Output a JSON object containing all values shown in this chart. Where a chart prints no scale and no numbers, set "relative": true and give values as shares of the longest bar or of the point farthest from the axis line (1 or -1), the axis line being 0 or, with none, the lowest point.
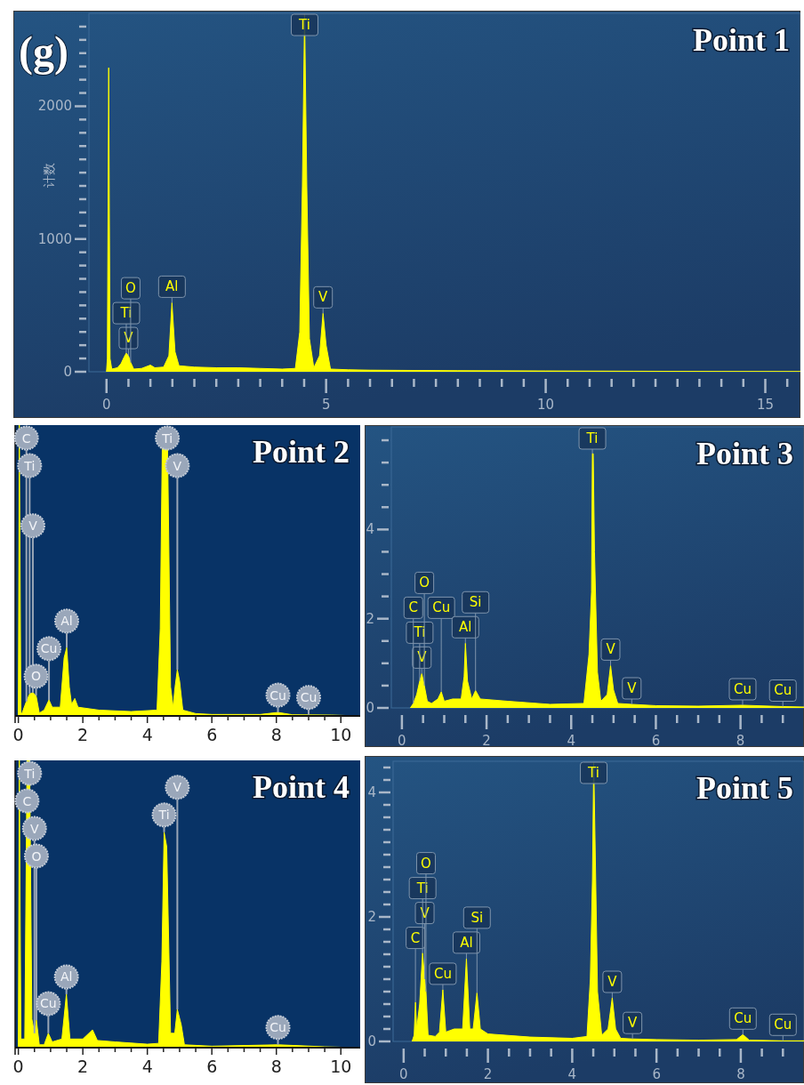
{
  "chart_data": [
    {
      "type": "area",
      "title": "Point 1",
      "ylabel": "计数",
      "annotations": [
        "(g)",
        {
          "text": "Ti",
          "x": 4.51,
          "y": 2690
        },
        {
          "text": "V",
          "x": 0.5,
          "y": 120
        },
        {
          "text": "Ti",
          "x": 0.45,
          "y": 140
        },
        {
          "text": "O",
          "x": 0.55,
          "y": 70
        },
        {
          "text": "Al",
          "x": 1.49,
          "y": 520
        },
        {
          "text": "V",
          "x": 4.93,
          "y": 440
        }
      ],
      "x": [
        0,
        0.02,
        0.05,
        0.08,
        0.12,
        0.25,
        0.33,
        0.4,
        0.45,
        0.5,
        0.55,
        0.62,
        0.8,
        1.0,
        1.1,
        1.3,
        1.42,
        1.49,
        1.56,
        1.65,
        2.0,
        2.5,
        3.0,
        3.5,
        4.0,
        4.3,
        4.4,
        4.46,
        4.51,
        4.56,
        4.62,
        4.72,
        4.85,
        4.93,
        5.0,
        5.1,
        5.5,
        6.0,
        8.0,
        10.0,
        12.0,
        14.0,
        15.8
      ],
      "series": [
        {
          "color": "#ffff00",
          "values": [
            0,
            100,
            2290,
            100,
            20,
            30,
            60,
            110,
            140,
            120,
            70,
            20,
            25,
            50,
            30,
            35,
            120,
            520,
            150,
            45,
            35,
            30,
            30,
            25,
            20,
            25,
            300,
            1400,
            2690,
            1400,
            250,
            30,
            120,
            440,
            200,
            20,
            15,
            12,
            8,
            6,
            4,
            2,
            1
          ]
        }
      ],
      "xlim": [
        -0.4,
        15.8
      ],
      "ylim": [
        0,
        2700
      ],
      "xticks": [
        0,
        {
          "value": 0.5,
          "label": null
        },
        {
          "value": 1,
          "label": null
        },
        {
          "value": 1.5,
          "label": null
        },
        {
          "value": 2,
          "label": null
        },
        {
          "value": 2.5,
          "label": null
        },
        {
          "value": 3,
          "label": null
        },
        {
          "value": 3.5,
          "label": null
        },
        {
          "value": 4,
          "label": null
        },
        {
          "value": 4.5,
          "label": null
        },
        5,
        {
          "value": 5.5,
          "label": null
        },
        {
          "value": 6,
          "label": null
        },
        {
          "value": 6.5,
          "label": null
        },
        {
          "value": 7,
          "label": null
        },
        {
          "value": 7.5,
          "label": null
        },
        {
          "value": 8,
          "label": null
        },
        {
          "value": 8.5,
          "label": null
        },
        {
          "value": 9,
          "label": null
        },
        {
          "value": 9.5,
          "label": null
        },
        10,
        {
          "value": 10.5,
          "label": null
        },
        {
          "value": 11,
          "label": null
        },
        {
          "value": 11.5,
          "label": null
        },
        {
          "value": 12,
          "label": null
        },
        {
          "value": 12.5,
          "label": null
        },
        {
          "value": 13,
          "label": null
        },
        {
          "value": 13.5,
          "label": null
        },
        {
          "value": 14,
          "label": null
        },
        {
          "value": 14.5,
          "label": null
        },
        15,
        {
          "value": 15.5,
          "label": null
        }
      ],
      "yticks": [
        0,
        {
          "value": 100,
          "label": null
        },
        {
          "value": 200,
          "label": null
        },
        {
          "value": 300,
          "label": null
        },
        {
          "value": 400,
          "label": null
        },
        {
          "value": 500,
          "label": null
        },
        {
          "value": 600,
          "label": null
        },
        {
          "value": 700,
          "label": null
        },
        {
          "value": 800,
          "label": null
        },
        {
          "value": 900,
          "label": null
        },
        1000,
        {
          "value": 1100,
          "label": null
        },
        {
          "value": 1200,
          "label": null
        },
        {
          "value": 1300,
          "label": null
        },
        {
          "value": 1400,
          "label": null
        },
        {
          "value": 1500,
          "label": null
        },
        {
          "value": 1600,
          "label": null
        },
        {
          "value": 1700,
          "label": null
        },
        {
          "value": 1800,
          "label": null
        },
        {
          "value": 1900,
          "label": null
        },
        2000,
        {
          "value": 2100,
          "label": null
        },
        {
          "value": 2200,
          "label": null
        },
        {
          "value": 2300,
          "label": null
        },
        {
          "value": 2400,
          "label": null
        },
        {
          "value": 2500,
          "label": null
        },
        {
          "value": 2600,
          "label": null
        }
      ]
    },
    {
      "type": "area",
      "title": "Point 2",
      "relative": true,
      "annotations": [
        {
          "text": "C",
          "x": 0.25,
          "y": 0.05
        },
        {
          "text": "Ti",
          "x": 0.35,
          "y": 0.076
        },
        {
          "text": "V",
          "x": 0.45,
          "y": 0.08
        },
        {
          "text": "O",
          "x": 0.55,
          "y": 0.07
        },
        {
          "text": "Cu",
          "x": 0.95,
          "y": 0.055
        },
        {
          "text": "Al",
          "x": 1.5,
          "y": 0.235
        },
        {
          "text": "Ti",
          "x": 4.62,
          "y": 0.99
        },
        {
          "text": "V",
          "x": 4.93,
          "y": 0.159
        },
        {
          "text": "Cu",
          "x": 8.05,
          "y": 0.012
        },
        {
          "text": "Cu",
          "x": 9.0,
          "y": 0.004
        }
      ],
      "x": [
        0,
        0.03,
        0.08,
        0.15,
        0.25,
        0.35,
        0.45,
        0.55,
        0.65,
        0.8,
        0.95,
        1.05,
        1.3,
        1.42,
        1.5,
        1.58,
        1.65,
        1.75,
        1.85,
        2.5,
        3.5,
        4.3,
        4.4,
        4.47,
        4.62,
        4.72,
        4.8,
        4.86,
        4.93,
        5.0,
        5.1,
        5.5,
        6.0,
        7.5,
        8.05,
        8.5,
        9.7,
        10.6
      ],
      "series": [
        {
          "color": "#ffff00",
          "values": [
            0,
            1,
            0,
            0.02,
            0.05,
            0.076,
            0.08,
            0.07,
            0.01,
            0.02,
            0.055,
            0.03,
            0.03,
            0.2,
            0.235,
            0.1,
            0.04,
            0.06,
            0.03,
            0.02,
            0.015,
            0.02,
            0.3,
            0.99,
            0.99,
            0.1,
            0.03,
            0.1,
            0.159,
            0.12,
            0.02,
            0.008,
            0.005,
            0.005,
            0.012,
            0.004,
            0.003,
            0
          ]
        }
      ],
      "xlim": [
        -0.1,
        10.6
      ],
      "xticks": [
        0,
        {
          "value": 0.5,
          "label": null
        },
        {
          "value": 1,
          "label": null
        },
        {
          "value": 1.5,
          "label": null
        },
        2,
        {
          "value": 2.5,
          "label": null
        },
        {
          "value": 3,
          "label": null
        },
        {
          "value": 3.5,
          "label": null
        },
        4,
        {
          "value": 4.5,
          "label": null
        },
        {
          "value": 5,
          "label": null
        },
        {
          "value": 5.5,
          "label": null
        },
        6,
        {
          "value": 6.5,
          "label": null
        },
        {
          "value": 7,
          "label": null
        },
        {
          "value": 7.5,
          "label": null
        },
        8,
        {
          "value": 8.5,
          "label": null
        },
        {
          "value": 9,
          "label": null
        },
        {
          "value": 9.5,
          "label": null
        },
        10
      ]
    },
    {
      "type": "area",
      "title": "Point 3",
      "annotations": [
        {
          "text": "Ti",
          "x": 4.5,
          "y": 5.7
        },
        {
          "text": "V",
          "x": 0.47,
          "y": 0.77
        },
        {
          "text": "Ti",
          "x": 0.42,
          "y": 0.6
        },
        {
          "text": "C",
          "x": 0.27,
          "y": 0.1
        },
        {
          "text": "O",
          "x": 0.53,
          "y": 0.5
        },
        {
          "text": "Cu",
          "x": 0.93,
          "y": 0.36
        },
        {
          "text": "Al",
          "x": 1.5,
          "y": 1.45
        },
        {
          "text": "Si",
          "x": 1.74,
          "y": 0.39
        },
        {
          "text": "V",
          "x": 4.93,
          "y": 0.95
        },
        {
          "text": "V",
          "x": 5.43,
          "y": 0.08
        },
        {
          "text": "Cu",
          "x": 8.05,
          "y": 0.06
        },
        {
          "text": "Cu",
          "x": 9.0,
          "y": 0.03
        }
      ],
      "x": [
        0.2,
        0.27,
        0.35,
        0.42,
        0.47,
        0.53,
        0.6,
        0.7,
        0.85,
        0.93,
        1.0,
        1.2,
        1.4,
        1.47,
        1.5,
        1.55,
        1.65,
        1.74,
        1.85,
        2.5,
        3.5,
        4.3,
        4.42,
        4.48,
        4.5,
        4.52,
        4.55,
        4.62,
        4.7,
        4.85,
        4.93,
        5.0,
        5.1,
        5.43,
        6.0,
        7.0,
        8.05,
        9.0,
        9.5
      ],
      "series": [
        {
          "color": "#ffff00",
          "values": [
            0,
            0.1,
            0.3,
            0.6,
            0.77,
            0.5,
            0.15,
            0.1,
            0.2,
            0.36,
            0.15,
            0.2,
            0.2,
            0.7,
            1.45,
            0.6,
            0.2,
            0.39,
            0.2,
            0.15,
            0.08,
            0.1,
            1.2,
            2.6,
            5.7,
            5.7,
            3.5,
            0.8,
            0.15,
            0.3,
            0.95,
            0.4,
            0.1,
            0.08,
            0.05,
            0.04,
            0.06,
            0.03,
            0.02
          ]
        }
      ],
      "xlim": [
        -0.25,
        9.5
      ],
      "ylim": [
        0,
        6.3
      ],
      "xticks": [
        0,
        {
          "value": 0.5,
          "label": null
        },
        {
          "value": 1,
          "label": null
        },
        {
          "value": 1.5,
          "label": null
        },
        2,
        {
          "value": 2.5,
          "label": null
        },
        {
          "value": 3,
          "label": null
        },
        {
          "value": 3.5,
          "label": null
        },
        4,
        {
          "value": 4.5,
          "label": null
        },
        {
          "value": 5,
          "label": null
        },
        {
          "value": 5.5,
          "label": null
        },
        6,
        {
          "value": 6.5,
          "label": null
        },
        {
          "value": 7,
          "label": null
        },
        {
          "value": 7.5,
          "label": null
        },
        8,
        {
          "value": 8.5,
          "label": null
        },
        {
          "value": 9,
          "label": null
        }
      ],
      "yticks": [
        0,
        {
          "value": 0.5,
          "label": null
        },
        {
          "value": 1,
          "label": null
        },
        {
          "value": 1.5,
          "label": null
        },
        2,
        {
          "value": 2.5,
          "label": null
        },
        {
          "value": 3,
          "label": null
        },
        {
          "value": 3.5,
          "label": null
        },
        4,
        {
          "value": 4.5,
          "label": null
        },
        {
          "value": 5,
          "label": null
        },
        {
          "value": 5.5,
          "label": null
        },
        {
          "value": 6,
          "label": null
        }
      ]
    },
    {
      "type": "area",
      "title": "Point 4",
      "relative": true,
      "annotations": [
        {
          "text": "Ti",
          "x": 0.35,
          "y": 1
        },
        {
          "text": "C",
          "x": 0.27,
          "y": 1
        },
        {
          "text": "V",
          "x": 0.5,
          "y": 0.05
        },
        {
          "text": "O",
          "x": 0.56,
          "y": 0.096
        },
        {
          "text": "Al",
          "x": 1.49,
          "y": 0.186
        },
        {
          "text": "Cu",
          "x": 0.93,
          "y": 0.05
        },
        {
          "text": "Ti",
          "x": 4.52,
          "y": 0.75
        },
        {
          "text": "V",
          "x": 4.93,
          "y": 0.133
        },
        {
          "text": "Cu",
          "x": 8.05,
          "y": 0.01
        }
      ],
      "x": [
        0,
        0.03,
        0.08,
        0.2,
        0.27,
        0.35,
        0.42,
        0.5,
        0.56,
        0.65,
        0.8,
        0.93,
        1.05,
        1.35,
        1.49,
        1.6,
        2.0,
        2.3,
        2.45,
        3.0,
        4.0,
        4.35,
        4.45,
        4.52,
        4.6,
        4.72,
        4.85,
        4.93,
        5.05,
        5.15,
        6.0,
        8.05,
        9.5,
        10.6
      ],
      "series": [
        {
          "color": "#ffff00",
          "values": [
            0,
            1,
            0.03,
            0.03,
            1,
            1,
            0.1,
            0.05,
            0.096,
            0.01,
            0.01,
            0.05,
            0.02,
            0.03,
            0.186,
            0.03,
            0.03,
            0.062,
            0.025,
            0.02,
            0.012,
            0.015,
            0.3,
            0.75,
            0.7,
            0.05,
            0.05,
            0.133,
            0.08,
            0.01,
            0.005,
            0.01,
            0.003,
            0
          ]
        }
      ],
      "xlim": [
        -0.1,
        10.6
      ],
      "xticks": [
        0,
        {
          "value": 0.5,
          "label": null
        },
        {
          "value": 1,
          "label": null
        },
        {
          "value": 1.5,
          "label": null
        },
        2,
        {
          "value": 2.5,
          "label": null
        },
        {
          "value": 3,
          "label": null
        },
        {
          "value": 3.5,
          "label": null
        },
        4,
        {
          "value": 4.5,
          "label": null
        },
        {
          "value": 5,
          "label": null
        },
        {
          "value": 5.5,
          "label": null
        },
        6,
        {
          "value": 6.5,
          "label": null
        },
        {
          "value": 7,
          "label": null
        },
        {
          "value": 7.5,
          "label": null
        },
        8,
        {
          "value": 8.5,
          "label": null
        },
        {
          "value": 9,
          "label": null
        },
        {
          "value": 9.5,
          "label": null
        },
        10
      ]
    },
    {
      "type": "area",
      "title": "Point 5",
      "annotations": [
        {
          "text": "Ti",
          "x": 4.51,
          "y": 4.48
        },
        {
          "text": "C",
          "x": 0.28,
          "y": 0.63
        },
        {
          "text": "V",
          "x": 0.5,
          "y": 1.0
        },
        {
          "text": "Ti",
          "x": 0.45,
          "y": 1.42
        },
        {
          "text": "O",
          "x": 0.53,
          "y": 0.8
        },
        {
          "text": "Cu",
          "x": 0.93,
          "y": 0.83
        },
        {
          "text": "Al",
          "x": 1.49,
          "y": 1.33
        },
        {
          "text": "Si",
          "x": 1.74,
          "y": 0.78
        },
        {
          "text": "V",
          "x": 4.95,
          "y": 0.7
        },
        {
          "text": "V",
          "x": 5.43,
          "y": 0.04
        },
        {
          "text": "Cu",
          "x": 8.05,
          "y": 0.11
        },
        {
          "text": "Cu",
          "x": 9.0,
          "y": 0.01
        }
      ],
      "x": [
        0.2,
        0.25,
        0.28,
        0.31,
        0.38,
        0.45,
        0.5,
        0.53,
        0.58,
        0.75,
        0.85,
        0.93,
        1.0,
        1.2,
        1.4,
        1.49,
        1.57,
        1.65,
        1.74,
        1.82,
        2.0,
        3.0,
        4.0,
        4.35,
        4.43,
        4.48,
        4.51,
        4.55,
        4.6,
        4.7,
        4.85,
        4.95,
        5.03,
        5.15,
        5.43,
        6.0,
        7.0,
        7.9,
        8.05,
        8.2,
        9.0,
        9.5
      ],
      "series": [
        {
          "color": "#ffff00",
          "values": [
            0,
            0.1,
            0.63,
            0.2,
            0.6,
            1.42,
            1.0,
            0.8,
            0.1,
            0.08,
            0.15,
            0.83,
            0.15,
            0.2,
            0.2,
            1.33,
            0.2,
            0.2,
            0.78,
            0.2,
            0.12,
            0.07,
            0.05,
            0.08,
            1.0,
            2.6,
            4.48,
            2.9,
            0.8,
            0.1,
            0.2,
            0.7,
            0.2,
            0.05,
            0.04,
            0.03,
            0.02,
            0.03,
            0.11,
            0.02,
            0.01,
            0.01
          ]
        }
      ],
      "xlim": [
        -0.25,
        9.5
      ],
      "ylim": [
        0,
        4.5
      ],
      "xticks": [
        0,
        {
          "value": 0.5,
          "label": null
        },
        {
          "value": 1,
          "label": null
        },
        {
          "value": 1.5,
          "label": null
        },
        2,
        {
          "value": 2.5,
          "label": null
        },
        {
          "value": 3,
          "label": null
        },
        {
          "value": 3.5,
          "label": null
        },
        4,
        {
          "value": 4.5,
          "label": null
        },
        {
          "value": 5,
          "label": null
        },
        {
          "value": 5.5,
          "label": null
        },
        6,
        {
          "value": 6.5,
          "label": null
        },
        {
          "value": 7,
          "label": null
        },
        {
          "value": 7.5,
          "label": null
        },
        8,
        {
          "value": 8.5,
          "label": null
        },
        {
          "value": 9,
          "label": null
        }
      ],
      "yticks": [
        0,
        {
          "value": 0.2,
          "label": null
        },
        {
          "value": 0.4,
          "label": null
        },
        {
          "value": 0.6,
          "label": null
        },
        {
          "value": 0.8,
          "label": null
        },
        {
          "value": 1,
          "label": null
        },
        {
          "value": 1.2,
          "label": null
        },
        {
          "value": 1.4,
          "label": null
        },
        {
          "value": 1.6,
          "label": null
        },
        {
          "value": 1.8,
          "label": null
        },
        2,
        {
          "value": 2.2,
          "label": null
        },
        {
          "value": 2.4,
          "label": null
        },
        {
          "value": 2.6,
          "label": null
        },
        {
          "value": 2.8,
          "label": null
        },
        {
          "value": 3,
          "label": null
        },
        {
          "value": 3.2,
          "label": null
        },
        {
          "value": 3.4,
          "label": null
        },
        {
          "value": 3.6,
          "label": null
        },
        {
          "value": 3.8,
          "label": null
        },
        4,
        {
          "value": 4.2,
          "label": null
        },
        {
          "value": 4.4,
          "label": null
        }
      ]
    }
  ]
}
